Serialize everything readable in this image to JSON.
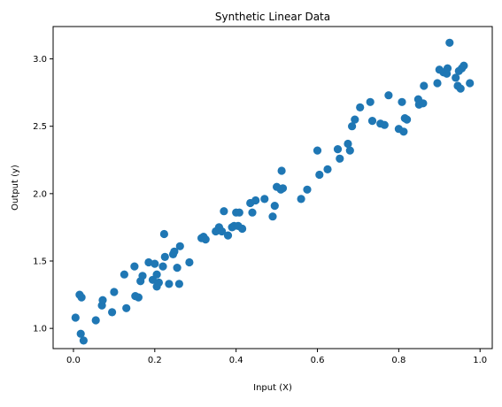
{
  "chart_data": {
    "type": "scatter",
    "title": "Synthetic Linear Data",
    "xlabel": "Input (X)",
    "ylabel": "Output (y)",
    "xlim": [
      -0.05,
      1.03
    ],
    "ylim": [
      0.85,
      3.24
    ],
    "xticks": [
      0.0,
      0.2,
      0.4,
      0.6,
      0.8,
      1.0
    ],
    "xtick_labels": [
      "0.0",
      "0.2",
      "0.4",
      "0.6",
      "0.8",
      "1.0"
    ],
    "yticks": [
      1.0,
      1.5,
      2.0,
      2.5,
      3.0
    ],
    "ytick_labels": [
      "1.0",
      "1.5",
      "2.0",
      "2.5",
      "3.0"
    ],
    "grid": false,
    "color": "#1f77b4",
    "points": [
      [
        0.005,
        1.08
      ],
      [
        0.015,
        1.25
      ],
      [
        0.02,
        1.23
      ],
      [
        0.018,
        0.96
      ],
      [
        0.025,
        0.91
      ],
      [
        0.055,
        1.06
      ],
      [
        0.07,
        1.17
      ],
      [
        0.072,
        1.21
      ],
      [
        0.095,
        1.12
      ],
      [
        0.1,
        1.27
      ],
      [
        0.125,
        1.4
      ],
      [
        0.13,
        1.15
      ],
      [
        0.15,
        1.46
      ],
      [
        0.152,
        1.24
      ],
      [
        0.16,
        1.23
      ],
      [
        0.165,
        1.35
      ],
      [
        0.17,
        1.39
      ],
      [
        0.185,
        1.49
      ],
      [
        0.195,
        1.36
      ],
      [
        0.2,
        1.48
      ],
      [
        0.205,
        1.31
      ],
      [
        0.21,
        1.34
      ],
      [
        0.205,
        1.4
      ],
      [
        0.22,
        1.46
      ],
      [
        0.223,
        1.7
      ],
      [
        0.225,
        1.53
      ],
      [
        0.235,
        1.33
      ],
      [
        0.245,
        1.55
      ],
      [
        0.248,
        1.57
      ],
      [
        0.255,
        1.45
      ],
      [
        0.26,
        1.33
      ],
      [
        0.262,
        1.61
      ],
      [
        0.285,
        1.49
      ],
      [
        0.315,
        1.67
      ],
      [
        0.32,
        1.68
      ],
      [
        0.325,
        1.66
      ],
      [
        0.35,
        1.72
      ],
      [
        0.358,
        1.75
      ],
      [
        0.365,
        1.72
      ],
      [
        0.37,
        1.87
      ],
      [
        0.38,
        1.69
      ],
      [
        0.39,
        1.75
      ],
      [
        0.395,
        1.76
      ],
      [
        0.4,
        1.86
      ],
      [
        0.405,
        1.76
      ],
      [
        0.408,
        1.86
      ],
      [
        0.415,
        1.74
      ],
      [
        0.435,
        1.93
      ],
      [
        0.44,
        1.86
      ],
      [
        0.448,
        1.95
      ],
      [
        0.47,
        1.96
      ],
      [
        0.49,
        1.83
      ],
      [
        0.495,
        1.91
      ],
      [
        0.5,
        2.05
      ],
      [
        0.51,
        2.03
      ],
      [
        0.512,
        2.17
      ],
      [
        0.515,
        2.04
      ],
      [
        0.56,
        1.96
      ],
      [
        0.575,
        2.03
      ],
      [
        0.6,
        2.32
      ],
      [
        0.605,
        2.14
      ],
      [
        0.625,
        2.18
      ],
      [
        0.65,
        2.33
      ],
      [
        0.655,
        2.26
      ],
      [
        0.675,
        2.37
      ],
      [
        0.68,
        2.32
      ],
      [
        0.685,
        2.5
      ],
      [
        0.692,
        2.55
      ],
      [
        0.705,
        2.64
      ],
      [
        0.73,
        2.68
      ],
      [
        0.735,
        2.54
      ],
      [
        0.755,
        2.52
      ],
      [
        0.765,
        2.51
      ],
      [
        0.775,
        2.73
      ],
      [
        0.8,
        2.48
      ],
      [
        0.808,
        2.68
      ],
      [
        0.812,
        2.46
      ],
      [
        0.815,
        2.56
      ],
      [
        0.82,
        2.55
      ],
      [
        0.848,
        2.7
      ],
      [
        0.85,
        2.66
      ],
      [
        0.86,
        2.67
      ],
      [
        0.862,
        2.8
      ],
      [
        0.895,
        2.82
      ],
      [
        0.9,
        2.92
      ],
      [
        0.91,
        2.9
      ],
      [
        0.918,
        2.89
      ],
      [
        0.92,
        2.93
      ],
      [
        0.925,
        3.12
      ],
      [
        0.94,
        2.86
      ],
      [
        0.945,
        2.8
      ],
      [
        0.948,
        2.91
      ],
      [
        0.952,
        2.78
      ],
      [
        0.955,
        2.93
      ],
      [
        0.96,
        2.95
      ],
      [
        0.975,
        2.82
      ]
    ]
  }
}
